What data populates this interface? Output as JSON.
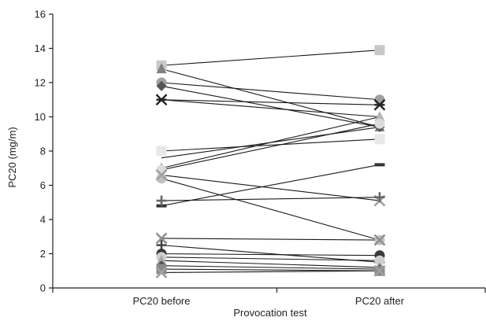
{
  "chart_data": {
    "type": "line",
    "xlabel": "Provocation test",
    "ylabel": "PC20 (mg/m)",
    "categories": [
      "PC20 before",
      "PC20 after"
    ],
    "ylim": [
      0,
      16
    ],
    "yticks": [
      0,
      2,
      4,
      6,
      8,
      10,
      12,
      14,
      16
    ],
    "grid": false,
    "series": [
      {
        "values": [
          13.0,
          13.9
        ],
        "marker": "square",
        "color": "#c8c8c8"
      },
      {
        "values": [
          12.8,
          9.4
        ],
        "marker": "triangle",
        "color": "#808080"
      },
      {
        "values": [
          12.0,
          11.0
        ],
        "marker": "circle",
        "color": "#a0a0a0"
      },
      {
        "values": [
          11.8,
          9.4
        ],
        "marker": "diamond",
        "color": "#555555"
      },
      {
        "values": [
          11.0,
          10.7
        ],
        "marker": "asterisk",
        "color": "#222222"
      },
      {
        "values": [
          11.0,
          10.0
        ],
        "marker": "none",
        "color": "#222222"
      },
      {
        "values": [
          8.0,
          8.7
        ],
        "marker": "square",
        "color": "#e8e8e8"
      },
      {
        "values": [
          7.6,
          9.4
        ],
        "marker": "none",
        "color": "#222222"
      },
      {
        "values": [
          7.0,
          10.0
        ],
        "marker": "triangle",
        "color": "#b4b4b4"
      },
      {
        "values": [
          6.9,
          9.6
        ],
        "marker": "circle",
        "color": "#dcdcdc"
      },
      {
        "values": [
          6.4,
          2.8
        ],
        "marker": "circle",
        "color": "#c0c0c0"
      },
      {
        "values": [
          6.6,
          5.1
        ],
        "marker": "x",
        "color": "#a0a0a0"
      },
      {
        "values": [
          4.8,
          7.2
        ],
        "marker": "minus",
        "color": "#333333"
      },
      {
        "values": [
          5.1,
          5.3
        ],
        "marker": "plus",
        "color": "#666666"
      },
      {
        "values": [
          2.9,
          2.8
        ],
        "marker": "x",
        "color": "#909090"
      },
      {
        "values": [
          2.5,
          1.5
        ],
        "marker": "plus",
        "color": "#444444"
      },
      {
        "values": [
          2.0,
          1.9
        ],
        "marker": "circle",
        "color": "#3a3a3a"
      },
      {
        "values": [
          1.8,
          1.6
        ],
        "marker": "circle",
        "color": "#d0d0d0"
      },
      {
        "values": [
          1.6,
          1.2
        ],
        "marker": "triangle",
        "color": "#a8a8a8"
      },
      {
        "values": [
          1.3,
          1.1
        ],
        "marker": "diamond",
        "color": "#505050"
      },
      {
        "values": [
          1.1,
          1.0
        ],
        "marker": "square",
        "color": "#8a8a8a"
      },
      {
        "values": [
          0.9,
          1.0
        ],
        "marker": "x",
        "color": "#a0a0a0"
      }
    ]
  }
}
